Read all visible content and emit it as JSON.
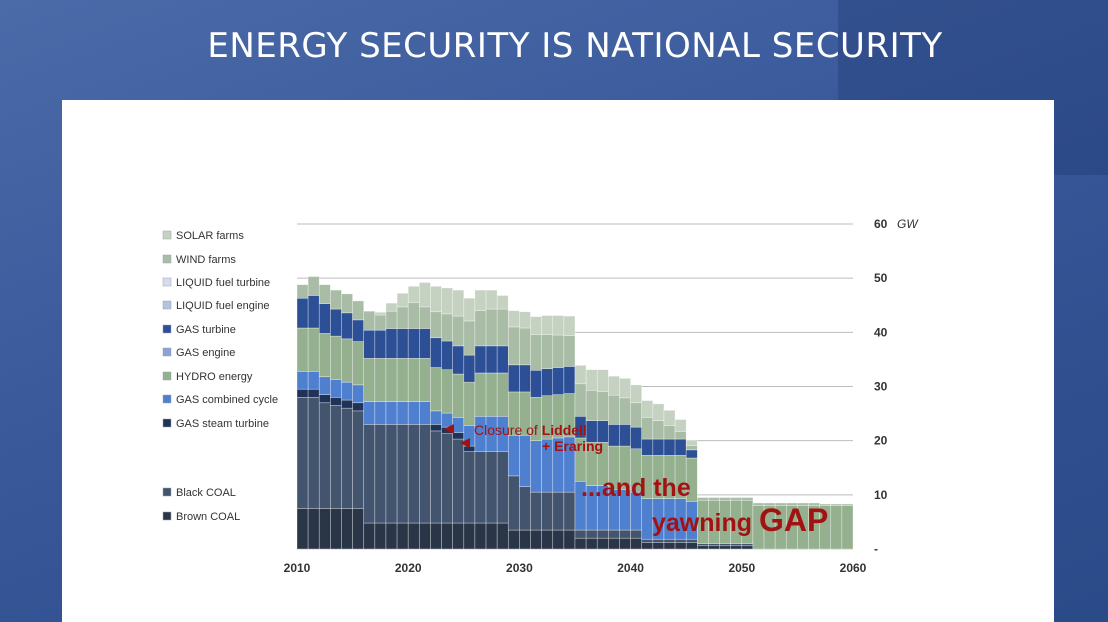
{
  "slide": {
    "title": "ENERGY SECURITY IS NATIONAL SECURITY"
  },
  "annotations": {
    "closure_prefix": "Closure of ",
    "closure_bold": "Liddell",
    "closure_line2": "+ Eraring",
    "gap_line1": "...and the",
    "gap_line2_pre": "yawning ",
    "gap_line2_big": "GAP"
  },
  "colors": {
    "solar": "#c5d2c2",
    "wind": "#a9bca5",
    "hydro": "#94b08f",
    "gas_turbine": "#2c4f95",
    "gas_cc": "#4f7fcf",
    "gas_steam": "#1f3358",
    "black_coal": "#43546e",
    "brown_coal": "#2a3647",
    "annotation": "#a31212"
  },
  "chart_data": {
    "type": "area",
    "xlim": [
      2010,
      2060
    ],
    "ylim": [
      0,
      60
    ],
    "ytick_labels": [
      "-",
      "10",
      "20",
      "30",
      "40",
      "50",
      "60"
    ],
    "y_unit": "GW",
    "xticks": [
      2010,
      2020,
      2030,
      2040,
      2050,
      2060
    ],
    "legend": [
      {
        "key": "solar",
        "label": "SOLAR farms"
      },
      {
        "key": "wind",
        "label": "WIND farms"
      },
      {
        "key": "liquid_turbine",
        "label": "LIQUID fuel turbine"
      },
      {
        "key": "liquid_engine",
        "label": "LIQUID fuel engine"
      },
      {
        "key": "gas_turbine",
        "label": "GAS turbine"
      },
      {
        "key": "gas_engine",
        "label": "GAS engine"
      },
      {
        "key": "hydro",
        "label": "HYDRO energy"
      },
      {
        "key": "gas_cc",
        "label": "GAS combined cycle"
      },
      {
        "key": "gas_steam",
        "label": "GAS steam turbine"
      },
      {
        "key": "black_coal",
        "label": "Black COAL"
      },
      {
        "key": "brown_coal",
        "label": "Brown COAL"
      }
    ],
    "years": [
      2010,
      2011,
      2012,
      2013,
      2014,
      2015,
      2016,
      2017,
      2018,
      2019,
      2020,
      2021,
      2022,
      2023,
      2024,
      2025,
      2026,
      2027,
      2028,
      2029,
      2030,
      2031,
      2032,
      2033,
      2034,
      2035,
      2036,
      2037,
      2038,
      2039,
      2040,
      2041,
      2042,
      2043,
      2044,
      2045,
      2046,
      2047,
      2048,
      2049,
      2050,
      2051,
      2052,
      2053,
      2054,
      2055,
      2056,
      2057,
      2058,
      2059
    ],
    "series": [
      {
        "key": "brown_coal",
        "values": [
          7.5,
          7.5,
          7.5,
          7.5,
          7.5,
          7.5,
          4.8,
          4.8,
          4.8,
          4.8,
          4.8,
          4.8,
          4.8,
          4.8,
          4.8,
          4.8,
          4.8,
          4.8,
          4.8,
          3.5,
          3.5,
          3.5,
          3.5,
          3.5,
          3.5,
          2.0,
          2.0,
          2.0,
          2.0,
          2.0,
          2.0,
          1.2,
          1.2,
          1.2,
          1.2,
          1.2,
          0.6,
          0.6,
          0.6,
          0.6,
          0.6,
          0,
          0,
          0,
          0,
          0,
          0,
          0,
          0,
          0
        ]
      },
      {
        "key": "black_coal",
        "values": [
          20.5,
          20.5,
          19.5,
          19,
          18.5,
          18,
          18.2,
          18.2,
          18.2,
          18.2,
          18.2,
          18.2,
          17.0,
          16.5,
          15.5,
          13.2,
          13.2,
          13.2,
          13.2,
          10.0,
          8.0,
          7.0,
          7.0,
          7.0,
          7.0,
          1.5,
          1.5,
          1.5,
          1.5,
          1.5,
          1.5,
          0.6,
          0.6,
          0.6,
          0.6,
          0.6,
          0.4,
          0.4,
          0.4,
          0.4,
          0.4,
          0,
          0,
          0,
          0,
          0,
          0,
          0,
          0,
          0
        ]
      },
      {
        "key": "gas_steam",
        "values": [
          1.5,
          1.5,
          1.5,
          1.5,
          1.5,
          1.5,
          0,
          0,
          0,
          0,
          0,
          0,
          1.2,
          1.2,
          1.2,
          1.0,
          0,
          0,
          0,
          0,
          0,
          0,
          0,
          0,
          0,
          0,
          0,
          0,
          0,
          0,
          0,
          0,
          0,
          0,
          0,
          0,
          0,
          0,
          0,
          0,
          0,
          0,
          0,
          0,
          0,
          0,
          0,
          0,
          0,
          0
        ]
      },
      {
        "key": "gas_cc",
        "values": [
          3.3,
          3.3,
          3.3,
          3.3,
          3.3,
          3.3,
          4.2,
          4.2,
          4.2,
          4.2,
          4.2,
          4.2,
          2.5,
          2.6,
          2.8,
          3.8,
          6.5,
          6.5,
          6.5,
          7.5,
          9.5,
          9.5,
          9.8,
          10.0,
          10.2,
          9.0,
          8.2,
          8.2,
          7.5,
          7.5,
          7.0,
          7.5,
          7.5,
          7.5,
          7.5,
          7.0,
          0,
          0,
          0,
          0,
          0,
          0,
          0,
          0,
          0,
          0,
          0,
          0,
          0,
          0
        ]
      },
      {
        "key": "hydro",
        "values": [
          8,
          8,
          8,
          8,
          8,
          8,
          8,
          8,
          8,
          8,
          8,
          8,
          8,
          8,
          8,
          8,
          8,
          8,
          8,
          8,
          8,
          8,
          8,
          8,
          8,
          8,
          8,
          8,
          8,
          8,
          8,
          8,
          8,
          8,
          8,
          8,
          8,
          8,
          8,
          8,
          8,
          8,
          8,
          8,
          8,
          8,
          8,
          8,
          8,
          8
        ]
      },
      {
        "key": "gas_turbine",
        "values": [
          5.5,
          6,
          5.5,
          5,
          4.8,
          4,
          5.2,
          5.2,
          5.5,
          5.5,
          5.5,
          5.5,
          5.5,
          5.3,
          5.2,
          5.0,
          5.0,
          5.0,
          5.0,
          5.0,
          5.0,
          5.0,
          5.0,
          5.0,
          5.0,
          4.0,
          4.0,
          4.0,
          4.0,
          4.0,
          4.0,
          3.0,
          3.0,
          3.0,
          3.0,
          1.5,
          0,
          0,
          0,
          0,
          0,
          0,
          0,
          0,
          0,
          0,
          0,
          0,
          0,
          0
        ]
      },
      {
        "key": "wind",
        "values": [
          2.5,
          3.5,
          3.5,
          3.5,
          3.5,
          3.5,
          3.5,
          2.8,
          3.2,
          4.0,
          4.8,
          4.0,
          4.8,
          5.0,
          5.5,
          6.3,
          6.5,
          6.8,
          6.8,
          7.0,
          6.8,
          6.6,
          6.3,
          6.0,
          5.7,
          6.0,
          5.6,
          5.4,
          5.4,
          4.9,
          4.5,
          4.0,
          3.4,
          2.5,
          1.4,
          0.8,
          0.5,
          0.5,
          0.5,
          0.5,
          0.5,
          0.5,
          0.5,
          0.5,
          0.5,
          0.5,
          0.5,
          0.3,
          0.3,
          0.3
        ]
      },
      {
        "key": "solar",
        "values": [
          0,
          0,
          0,
          0,
          0,
          0,
          0,
          0.5,
          1.5,
          2.5,
          3.0,
          4.5,
          4.7,
          4.8,
          4.8,
          4.2,
          3.8,
          3.5,
          2.5,
          3.0,
          3.0,
          3.3,
          3.5,
          3.6,
          3.6,
          3.4,
          3.8,
          4.0,
          3.5,
          3.6,
          3.3,
          3.1,
          3.1,
          2.8,
          2.2,
          1.0,
          0,
          0,
          0,
          0,
          0,
          0,
          0,
          0,
          0,
          0,
          0,
          0,
          0,
          0
        ]
      }
    ]
  }
}
